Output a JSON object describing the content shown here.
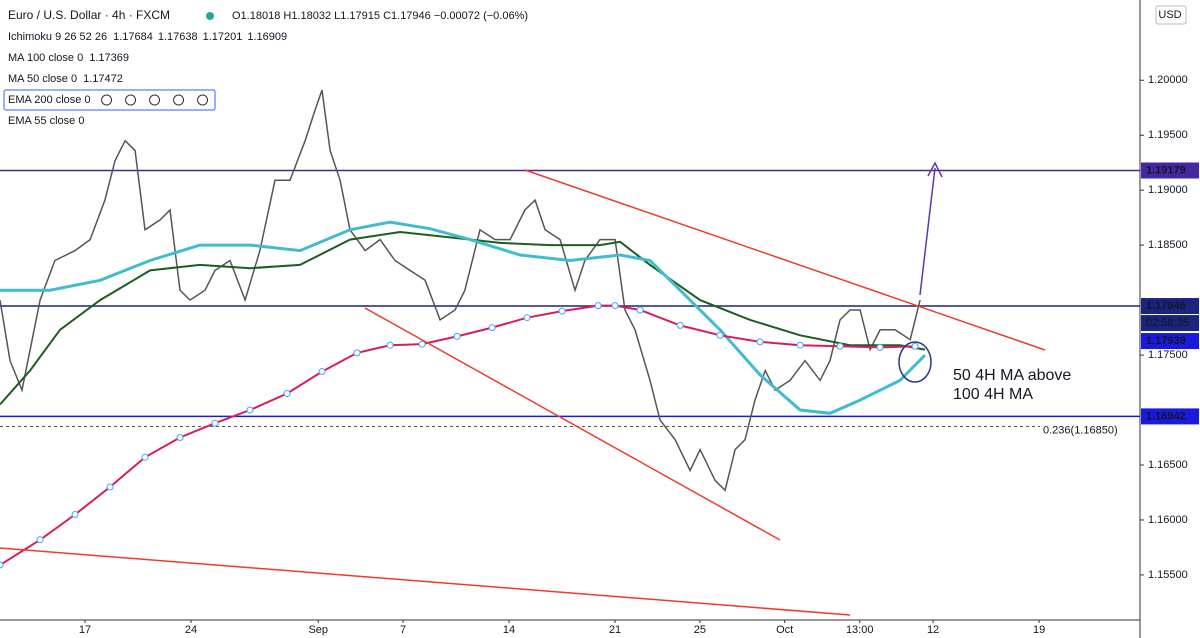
{
  "chart_data": {
    "type": "line",
    "title": "Euro / U.S. Dollar · 4h · FXCM",
    "ohlc": "O1.18018 H1.18032 L1.17915 C1.17946 −0.00072 (−0.06%)",
    "currency": "USD",
    "indicators": [
      {
        "name": "Ichimoku 9 26 52 26",
        "readouts": [
          "1.17684",
          "1.17638",
          "1.17201",
          "1.16909"
        ],
        "colors": [
          "#2196f3",
          "#b71c1c",
          "#43a047",
          "#e53935"
        ]
      },
      {
        "name": "EMA 55 close 0",
        "readouts": []
      }
    ],
    "xlim": [
      -4.01,
      49.76
    ],
    "ylim": [
      1.1509,
      1.2073
    ],
    "xticks": [
      {
        "value": 0,
        "label": "17"
      },
      {
        "value": 5,
        "label": "24"
      },
      {
        "value": 11,
        "label": "Sep"
      },
      {
        "value": 15,
        "label": "7"
      },
      {
        "value": 20,
        "label": "14"
      },
      {
        "value": 25,
        "label": "21"
      },
      {
        "value": 29,
        "label": "25"
      },
      {
        "value": 33,
        "label": "Oct"
      },
      {
        "value": 36.54,
        "label": "13:00"
      },
      {
        "value": 40,
        "label": "12"
      },
      {
        "value": 45,
        "label": "19"
      }
    ],
    "yticks": [
      {
        "value": 1.155,
        "label": "1.15500"
      },
      {
        "value": 1.16,
        "label": "1.16000"
      },
      {
        "value": 1.165,
        "label": "1.16500"
      },
      {
        "value": 1.175,
        "label": "1.17500"
      },
      {
        "value": 1.185,
        "label": "1.18500"
      },
      {
        "value": 1.19,
        "label": "1.19000"
      },
      {
        "value": 1.195,
        "label": "1.19500"
      },
      {
        "value": 1.2,
        "label": "1.20000"
      }
    ],
    "series": [
      {
        "color": "#555555",
        "width": 1.5,
        "x": [
          -4.01,
          -3.54,
          -2.97,
          -2.12,
          -1.42,
          -0.47,
          0.24,
          0.94,
          1.42,
          1.89,
          2.36,
          2.83,
          3.54,
          4.01,
          4.48,
          4.95,
          5.66,
          6.13,
          6.84,
          7.55,
          8.25,
          8.96,
          9.67,
          10.38,
          10.85,
          11.18,
          11.56,
          12.03,
          12.5,
          13.21,
          13.92,
          14.62,
          15.33,
          16.04,
          16.75,
          17.45,
          17.92,
          18.63,
          19.34,
          20.05,
          20.75,
          21.23,
          21.7,
          22.41,
          23.11,
          23.58,
          24.29,
          25.0,
          25.47,
          25.94,
          26.65,
          27.12,
          27.83,
          28.54,
          29.01,
          29.72,
          30.19,
          30.66,
          31.13,
          31.6,
          32.08,
          32.55,
          33.25,
          33.96,
          34.67,
          35.14,
          35.61,
          36.08,
          36.56,
          37.03,
          37.5,
          38.21,
          38.92,
          39.39
        ],
        "values": [
          1.18,
          1.1745,
          1.1718,
          1.18,
          1.1836,
          1.1845,
          1.1855,
          1.1891,
          1.1927,
          1.1945,
          1.1936,
          1.1864,
          1.1873,
          1.1882,
          1.1809,
          1.18,
          1.1809,
          1.1827,
          1.1836,
          1.18,
          1.1845,
          1.1909,
          1.1909,
          1.1945,
          1.1973,
          1.1991,
          1.1936,
          1.1909,
          1.1864,
          1.1845,
          1.1855,
          1.1836,
          1.1827,
          1.1818,
          1.1782,
          1.1791,
          1.1809,
          1.1864,
          1.1855,
          1.1855,
          1.1882,
          1.1891,
          1.1864,
          1.1855,
          1.1809,
          1.1836,
          1.1855,
          1.1855,
          1.1791,
          1.1773,
          1.1727,
          1.1691,
          1.1673,
          1.1645,
          1.1664,
          1.1636,
          1.1627,
          1.1664,
          1.1673,
          1.1709,
          1.1736,
          1.1718,
          1.1727,
          1.1745,
          1.1727,
          1.1745,
          1.1782,
          1.1791,
          1.1791,
          1.1755,
          1.1773,
          1.1773,
          1.1764,
          1.18
        ]
      },
      {
        "name": "MA 100 close 0",
        "readout": "1.17369",
        "color": "#1b5e20",
        "width": 2,
        "x": [
          -4.01,
          -2.59,
          -1.18,
          0.71,
          3.07,
          5.42,
          7.78,
          10.14,
          12.5,
          14.86,
          17.22,
          19.58,
          21.93,
          24.29,
          25.24,
          26.65,
          29.01,
          31.37,
          33.73,
          36.08,
          38.44,
          39.62
        ],
        "values": [
          1.1705,
          1.1736,
          1.1773,
          1.18,
          1.1827,
          1.1832,
          1.1829,
          1.1832,
          1.1855,
          1.1862,
          1.1857,
          1.1852,
          1.185,
          1.185,
          1.1853,
          1.1832,
          1.18,
          1.1782,
          1.1768,
          1.1759,
          1.1759,
          1.1755
        ]
      },
      {
        "name": "MA 50 close 0",
        "readout": "1.17472",
        "color": "#3fbcd0",
        "width": 3,
        "x": [
          -4.01,
          -1.65,
          0.71,
          3.07,
          5.42,
          7.78,
          10.14,
          12.5,
          14.39,
          16.27,
          18.16,
          20.52,
          22.88,
          25.24,
          26.65,
          28.07,
          29.95,
          31.84,
          33.73,
          35.14,
          36.56,
          38.44,
          39.62
        ],
        "values": [
          1.1809,
          1.1809,
          1.1818,
          1.1836,
          1.185,
          1.185,
          1.1845,
          1.1864,
          1.1871,
          1.1865,
          1.1855,
          1.1841,
          1.1836,
          1.1841,
          1.1836,
          1.1809,
          1.1773,
          1.1732,
          1.17,
          1.1697,
          1.1709,
          1.1727,
          1.175
        ]
      },
      {
        "name": "EMA 200 close 0",
        "color": "#d81b60",
        "width": 2,
        "dots": true,
        "x": [
          -4.01,
          -2.12,
          -0.47,
          1.18,
          2.83,
          4.48,
          6.13,
          7.78,
          9.53,
          11.18,
          12.83,
          14.39,
          15.9,
          17.55,
          19.2,
          20.85,
          22.5,
          24.2,
          25.0,
          26.18,
          28.07,
          29.95,
          31.84,
          33.73,
          35.61,
          37.5,
          39.15
        ],
        "values": [
          1.1559,
          1.1582,
          1.1605,
          1.163,
          1.1657,
          1.1675,
          1.1688,
          1.17,
          1.1715,
          1.1735,
          1.1752,
          1.1759,
          1.176,
          1.1767,
          1.1775,
          1.1784,
          1.179,
          1.1795,
          1.1795,
          1.1791,
          1.1777,
          1.1768,
          1.1762,
          1.1759,
          1.1758,
          1.1757,
          1.1758
        ]
      }
    ],
    "levels": [
      {
        "value": 1.19179,
        "color": "#4527a0"
      },
      {
        "value": 1.17946,
        "color": "#1a237e"
      },
      {
        "value": 1.16942,
        "color": "#1a1adc"
      }
    ],
    "aux_labels": [
      {
        "value": 1.17939,
        "color": "#1a1adc"
      }
    ],
    "countdown": "02:58:35",
    "fib": {
      "value": 1.1685,
      "label": "0.236(1.16850)"
    },
    "annotations": [
      "50 4H MA above",
      "100 4H MA"
    ]
  }
}
